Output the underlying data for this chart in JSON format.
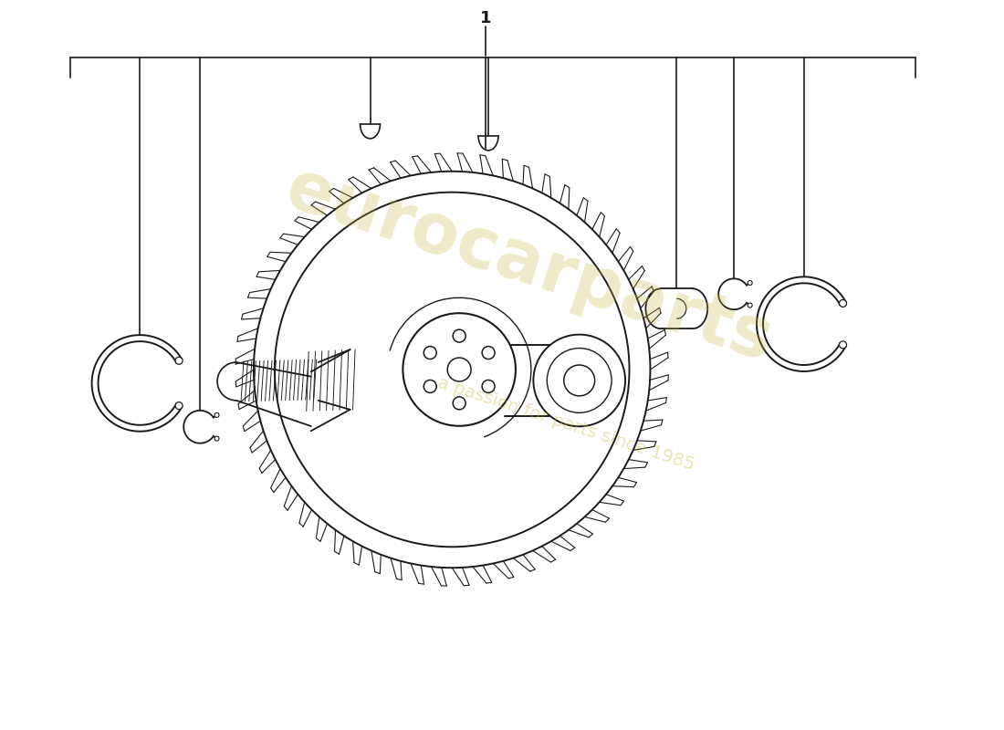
{
  "bg_color": "#ffffff",
  "line_color": "#1a1a1a",
  "watermark_text1": "eurocarparts",
  "watermark_text2": "a passion for parts since 1985",
  "part_number": "1"
}
